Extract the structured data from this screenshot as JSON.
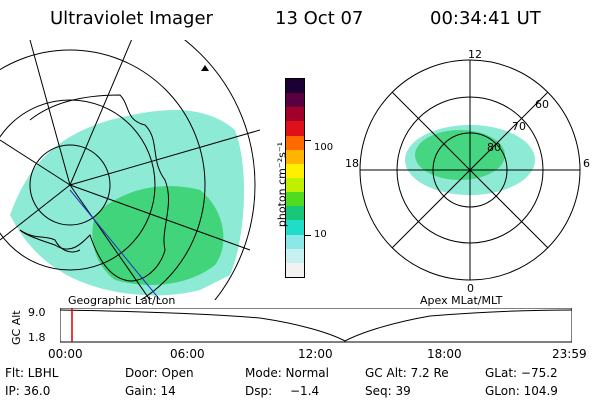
{
  "header": {
    "title": "Ultraviolet Imager",
    "date": "13 Oct 07",
    "time": "00:34:41 UT"
  },
  "colorbar": {
    "unit_label": "photon cm⁻²s⁻¹",
    "ticks": [
      "100",
      "10"
    ],
    "colors": [
      "#1a0033",
      "#5a0040",
      "#a0002a",
      "#e0101a",
      "#ff6a00",
      "#ffb400",
      "#fff000",
      "#bef000",
      "#4fdc20",
      "#18c878",
      "#20dcc8",
      "#8ce8e8",
      "#c8f0f0",
      "#f2f2f2"
    ]
  },
  "panels": {
    "left_caption": "Geographic Lat/Lon",
    "right_caption": "Apex MLat/MLT",
    "polar": {
      "mlt_labels": [
        "12",
        "18",
        "6",
        "0"
      ],
      "lat_labels": [
        "60",
        "70",
        "80"
      ]
    }
  },
  "timeline": {
    "axis_label": "GC Alt",
    "y_ticks": [
      "9.0",
      "1.8"
    ],
    "x_ticks": [
      "00:00",
      "06:00",
      "12:00",
      "18:00",
      "23:59"
    ],
    "marker_color": "#e00000"
  },
  "info": {
    "row1": {
      "filt": "Flt: LBHL",
      "door": "Door: Open",
      "mode": "Mode: Normal",
      "gcalt": "GC Alt: 7.2 Re",
      "glat": "GLat: −75.2"
    },
    "row2": {
      "ip": "IP: 36.0",
      "gain": "Gain: 14",
      "dsp_label": "Dsp:",
      "dsp_value": "−1.4",
      "seq": "Seq: 39",
      "glon": "GLon: 104.9"
    }
  }
}
